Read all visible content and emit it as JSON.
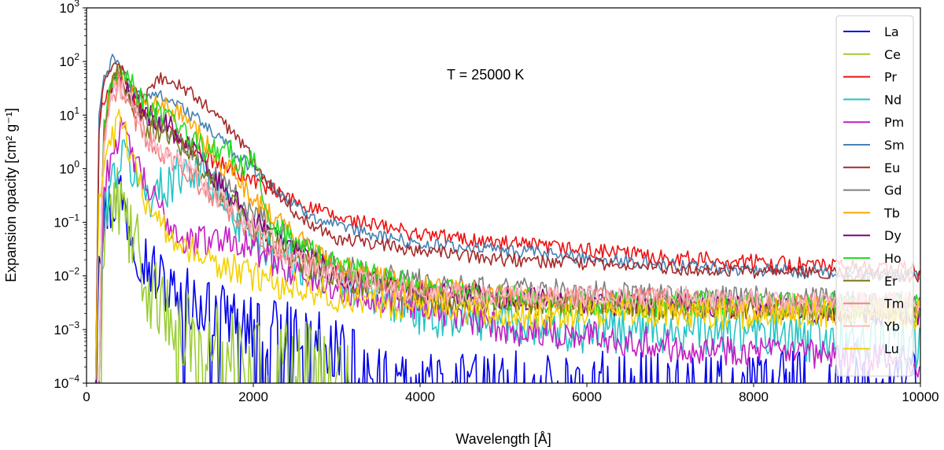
{
  "chart_data": {
    "type": "line",
    "annotation": "T = 25000 K",
    "xlabel": "Wavelength [Å]",
    "ylabel": "Expansion opacity [cm² g⁻¹]",
    "xlim": [
      0,
      10000
    ],
    "ylim": [
      0.0001,
      1000
    ],
    "yscale": "log",
    "xticks": [
      0,
      2000,
      4000,
      6000,
      8000,
      10000
    ],
    "xtick_labels": [
      "0",
      "2000",
      "4000",
      "6000",
      "8000",
      "10000"
    ],
    "yticks": [
      {
        "value": 0.0001,
        "base": "10",
        "exp": "−4"
      },
      {
        "value": 0.001,
        "base": "10",
        "exp": "−3"
      },
      {
        "value": 0.01,
        "base": "10",
        "exp": "−2"
      },
      {
        "value": 0.1,
        "base": "10",
        "exp": "−1"
      },
      {
        "value": 1,
        "base": "10",
        "exp": "0"
      },
      {
        "value": 10,
        "base": "10",
        "exp": "1"
      },
      {
        "value": 100,
        "base": "10",
        "exp": "2"
      },
      {
        "value": 1000,
        "base": "10",
        "exp": "3"
      }
    ],
    "grid": false,
    "legend_position": "top-right",
    "series": [
      {
        "name": "La",
        "color": "#0000ee",
        "noise": 1.2,
        "dips": true,
        "x": [
          110,
          150,
          250,
          320,
          380,
          450,
          600,
          800,
          1000,
          1200,
          1500,
          2000,
          2500,
          3000,
          3300,
          3600,
          4000,
          5000,
          6000,
          7000,
          8000,
          9000,
          10000
        ],
        "y": [
          0.0001,
          0.03,
          0.2,
          0.2,
          0.5,
          0.2,
          0.04,
          0.012,
          0.006,
          0.004,
          0.002,
          0.001,
          0.0008,
          0.0005,
          0.0002,
          0.0001,
          0.0001,
          0.0001,
          0.0001,
          0.0001,
          0.0001,
          0.0001,
          0.0001
        ]
      },
      {
        "name": "Ce",
        "color": "#9acd32",
        "noise": 1.5,
        "dips": true,
        "x": [
          150,
          200,
          260,
          330,
          380,
          500,
          700,
          900,
          1100,
          1300,
          1600,
          2000,
          2400,
          2800,
          3000,
          3150
        ],
        "y": [
          0.0001,
          0.05,
          0.2,
          0.15,
          0.3,
          0.08,
          0.01,
          0.002,
          0.001,
          0.0008,
          0.0006,
          0.0004,
          0.0003,
          0.0003,
          0.0002,
          0.0001
        ]
      },
      {
        "name": "Pr",
        "color": "#ee1111",
        "noise": 0.3,
        "dips": false,
        "x": [
          110,
          150,
          200,
          300,
          350,
          500,
          700,
          900,
          1200,
          1500,
          2000,
          2500,
          3000,
          4000,
          5000,
          6000,
          7000,
          8000,
          9000,
          10000
        ],
        "y": [
          0.0001,
          5,
          20,
          40,
          50,
          20,
          10,
          6,
          3,
          1.5,
          0.6,
          0.25,
          0.12,
          0.06,
          0.04,
          0.03,
          0.022,
          0.018,
          0.015,
          0.013
        ]
      },
      {
        "name": "Nd",
        "color": "#22c5c5",
        "noise": 0.9,
        "dips": false,
        "x": [
          150,
          200,
          300,
          400,
          500,
          600,
          800,
          1000,
          1200,
          1400,
          1700,
          2000,
          2500,
          3000,
          4000,
          5000,
          6000,
          7000,
          8000,
          9000,
          10000
        ],
        "y": [
          0.0001,
          0.1,
          0.6,
          1.5,
          1.5,
          0.6,
          0.3,
          0.6,
          1.2,
          0.8,
          0.2,
          0.06,
          0.02,
          0.008,
          0.002,
          0.0015,
          0.001,
          0.001,
          0.0008,
          0.0006,
          0.0005
        ]
      },
      {
        "name": "Pm",
        "color": "#c41ec4",
        "noise": 0.6,
        "dips": false,
        "x": [
          150,
          200,
          300,
          400,
          500,
          700,
          900,
          1200,
          1500,
          1800,
          2200,
          2600,
          3000,
          3500,
          4000,
          5000,
          6000,
          7000,
          8000,
          9000,
          10000
        ],
        "y": [
          0.0001,
          0.3,
          2,
          5,
          3,
          0.5,
          0.15,
          0.04,
          0.05,
          0.05,
          0.02,
          0.01,
          0.006,
          0.004,
          0.003,
          0.001,
          0.0008,
          0.0005,
          0.0004,
          0.0003,
          0.00025
        ]
      },
      {
        "name": "Sm",
        "color": "#4682b4",
        "noise": 0.25,
        "dips": false,
        "x": [
          110,
          150,
          200,
          300,
          350,
          500,
          700,
          900,
          1200,
          1500,
          2000,
          2500,
          3000,
          4000,
          5000,
          6000,
          7000,
          8000,
          9000,
          10000
        ],
        "y": [
          0.0001,
          10,
          40,
          100,
          110,
          40,
          20,
          25,
          12,
          5,
          1,
          0.2,
          0.08,
          0.04,
          0.03,
          0.022,
          0.016,
          0.013,
          0.011,
          0.01
        ]
      },
      {
        "name": "Eu",
        "color": "#a52a2a",
        "noise": 0.25,
        "dips": false,
        "x": [
          110,
          150,
          200,
          300,
          350,
          500,
          700,
          900,
          1200,
          1500,
          1800,
          2000,
          2200,
          2500,
          3000,
          4000,
          5000,
          6000,
          7000,
          8000,
          9000,
          10000
        ],
        "y": [
          0.0001,
          5,
          30,
          80,
          110,
          40,
          20,
          50,
          30,
          12,
          4,
          1.5,
          0.5,
          0.15,
          0.05,
          0.03,
          0.02,
          0.017,
          0.014,
          0.012,
          0.011,
          0.01
        ]
      },
      {
        "name": "Gd",
        "color": "#7f7f7f",
        "noise": 0.45,
        "dips": false,
        "x": [
          150,
          200,
          300,
          400,
          500,
          700,
          900,
          1200,
          1500,
          2000,
          2500,
          3000,
          4000,
          5000,
          6000,
          7000,
          8000,
          9000,
          10000
        ],
        "y": [
          0.0001,
          5,
          30,
          60,
          30,
          10,
          8,
          3,
          0.8,
          0.15,
          0.04,
          0.015,
          0.008,
          0.006,
          0.005,
          0.004,
          0.004,
          0.0035,
          0.003
        ]
      },
      {
        "name": "Tb",
        "color": "#ffa500",
        "noise": 0.45,
        "dips": false,
        "x": [
          150,
          200,
          300,
          400,
          500,
          700,
          900,
          1200,
          1500,
          2000,
          2500,
          3000,
          4000,
          5000,
          6000,
          7000,
          8000,
          9000,
          10000
        ],
        "y": [
          0.0001,
          3,
          30,
          70,
          30,
          12,
          15,
          8,
          2,
          0.3,
          0.05,
          0.015,
          0.006,
          0.004,
          0.003,
          0.003,
          0.0025,
          0.0025,
          0.0025
        ]
      },
      {
        "name": "Dy",
        "color": "#800080",
        "noise": 0.45,
        "dips": false,
        "x": [
          150,
          200,
          300,
          400,
          500,
          700,
          900,
          1200,
          1500,
          2000,
          2500,
          3000,
          4000,
          5000,
          6000,
          7000,
          8000,
          9000,
          10000
        ],
        "y": [
          0.0001,
          3,
          25,
          60,
          30,
          10,
          8,
          3,
          0.8,
          0.1,
          0.03,
          0.01,
          0.005,
          0.004,
          0.003,
          0.003,
          0.0025,
          0.002,
          0.002
        ]
      },
      {
        "name": "Ho",
        "color": "#22dd22",
        "noise": 0.5,
        "dips": false,
        "x": [
          150,
          200,
          300,
          400,
          500,
          700,
          900,
          1200,
          1500,
          1700,
          1800,
          2000,
          2200,
          2500,
          3000,
          4000,
          5000,
          6000,
          7000,
          8000,
          9000,
          10000
        ],
        "y": [
          0.0001,
          5,
          40,
          100,
          50,
          15,
          10,
          4,
          2,
          3,
          1,
          1.5,
          0.1,
          0.04,
          0.015,
          0.006,
          0.004,
          0.003,
          0.003,
          0.003,
          0.0028,
          0.0025
        ]
      },
      {
        "name": "Er",
        "color": "#7a7a1a",
        "noise": 0.45,
        "dips": false,
        "x": [
          150,
          200,
          300,
          400,
          500,
          700,
          900,
          1200,
          1500,
          2000,
          2500,
          3000,
          4000,
          5000,
          6000,
          7000,
          8000,
          9000,
          10000
        ],
        "y": [
          0.0001,
          4,
          30,
          70,
          20,
          6,
          5,
          2,
          0.5,
          0.08,
          0.02,
          0.008,
          0.004,
          0.003,
          0.003,
          0.0025,
          0.0025,
          0.002,
          0.002
        ]
      },
      {
        "name": "Tm",
        "color": "#f08080",
        "noise": 0.45,
        "dips": false,
        "x": [
          150,
          200,
          300,
          400,
          500,
          700,
          900,
          1200,
          1500,
          2000,
          2500,
          3000,
          4000,
          5000,
          6000,
          7000,
          8000,
          9000,
          10000
        ],
        "y": [
          0.0001,
          3,
          20,
          40,
          15,
          4,
          2,
          1,
          0.3,
          0.06,
          0.02,
          0.01,
          0.005,
          0.004,
          0.004,
          0.0035,
          0.003,
          0.003,
          0.003
        ]
      },
      {
        "name": "Yb",
        "color": "#ffb6c1",
        "noise": 0.45,
        "dips": false,
        "x": [
          150,
          200,
          300,
          400,
          500,
          700,
          900,
          1200,
          1500,
          2000,
          2500,
          3000,
          4000,
          5000,
          6000,
          7000,
          8000,
          9000,
          10000
        ],
        "y": [
          0.0001,
          3,
          25,
          30,
          20,
          5,
          2,
          1,
          0.4,
          0.08,
          0.02,
          0.01,
          0.005,
          0.004,
          0.004,
          0.004,
          0.0035,
          0.003,
          0.003
        ]
      },
      {
        "name": "Lu",
        "color": "#f5d000",
        "noise": 0.6,
        "dips": false,
        "x": [
          110,
          150,
          200,
          300,
          400,
          500,
          700,
          900,
          1200,
          1500,
          2000,
          2500,
          3000,
          3500,
          4000,
          5000,
          6000,
          7000,
          8000,
          9000,
          10000
        ],
        "y": [
          0.0001,
          0.3,
          1,
          3,
          8,
          3,
          0.3,
          0.08,
          0.03,
          0.02,
          0.01,
          0.006,
          0.004,
          0.003,
          0.003,
          0.002,
          0.002,
          0.002,
          0.002,
          0.002,
          0.002
        ]
      }
    ]
  }
}
